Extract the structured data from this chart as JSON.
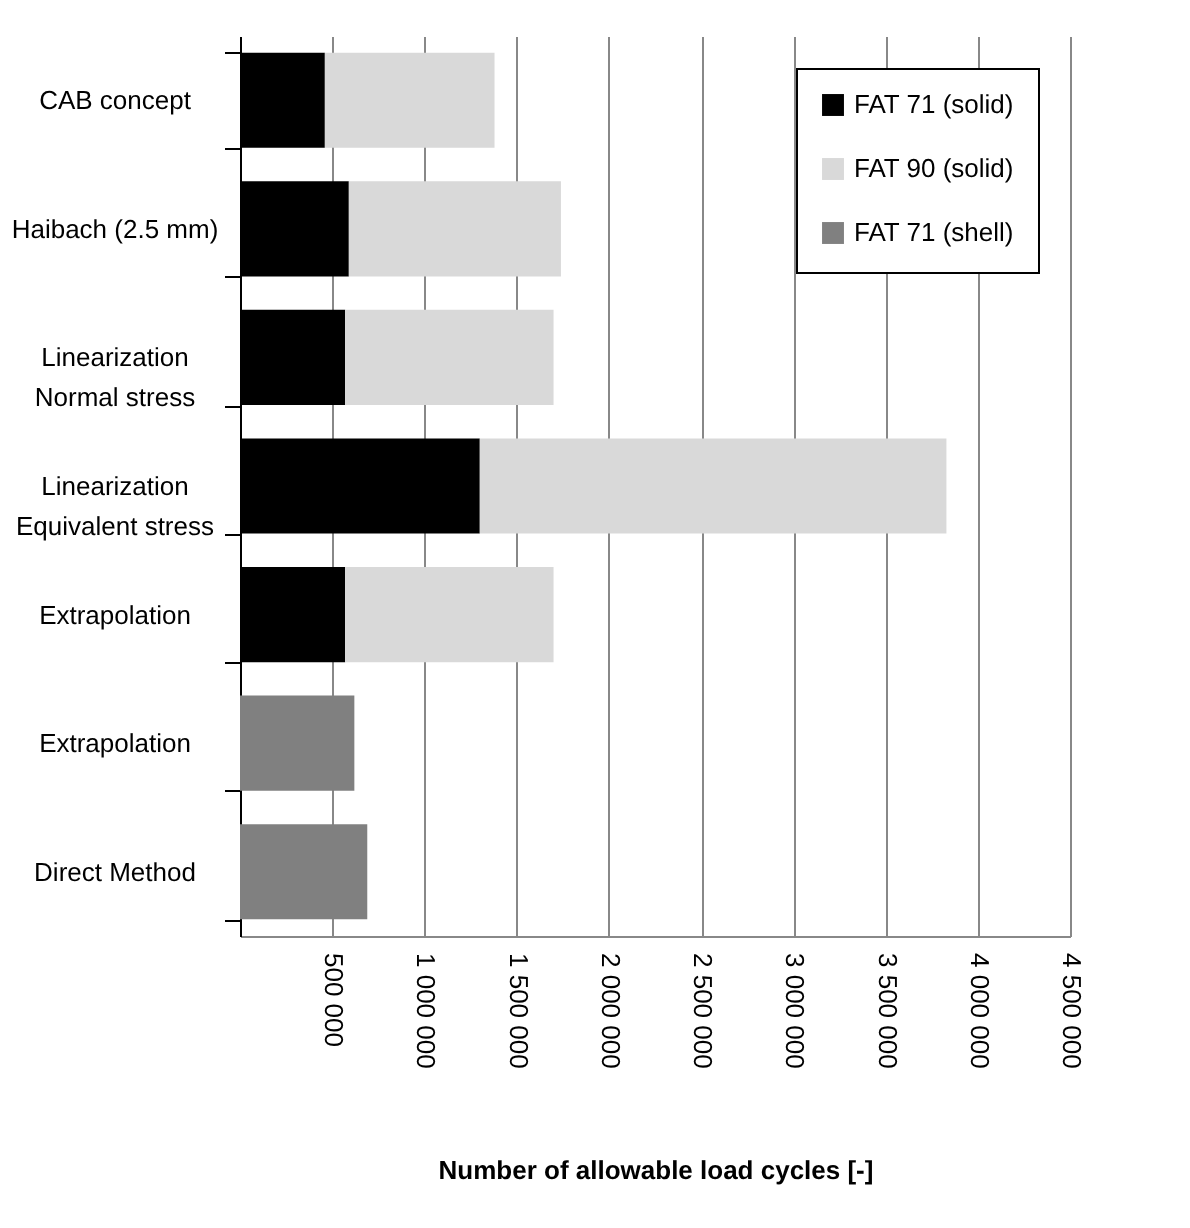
{
  "chart_data": {
    "type": "bar",
    "orientation": "horizontal",
    "stacked": true,
    "xlabel": "Number of allowable load cycles [-]",
    "categories": [
      "CAB concept",
      "Haibach (2.5 mm)",
      "Linearization\nNormal stress",
      "Linearization\nEquivalent stress",
      "Extrapolation",
      "Extrapolation",
      "Direct Method"
    ],
    "series": [
      {
        "name": "FAT 71 (solid)",
        "color": "#000000",
        "values": [
          460000,
          590000,
          570000,
          1300000,
          570000,
          null,
          null
        ]
      },
      {
        "name": "FAT 90 (solid)",
        "color": "#d9d9d9",
        "values": [
          920000,
          1150000,
          1130000,
          2530000,
          1130000,
          null,
          null
        ]
      },
      {
        "name": "FAT 71 (shell)",
        "color": "#808080",
        "values": [
          null,
          null,
          null,
          null,
          null,
          620000,
          690000
        ]
      }
    ],
    "xlim": [
      0,
      4500000
    ],
    "xticks": [
      {
        "value": 500000,
        "label": "500 000"
      },
      {
        "value": 1000000,
        "label": "1 000 000"
      },
      {
        "value": 1500000,
        "label": "1 500 000"
      },
      {
        "value": 2000000,
        "label": "2 000 000"
      },
      {
        "value": 2500000,
        "label": "2 500 000"
      },
      {
        "value": 3000000,
        "label": "3 000 000"
      },
      {
        "value": 3500000,
        "label": "3 500 000"
      },
      {
        "value": 4000000,
        "label": "4 000 000"
      },
      {
        "value": 4500000,
        "label": "4 500 000"
      }
    ],
    "grid": "x",
    "legend": "top right"
  }
}
